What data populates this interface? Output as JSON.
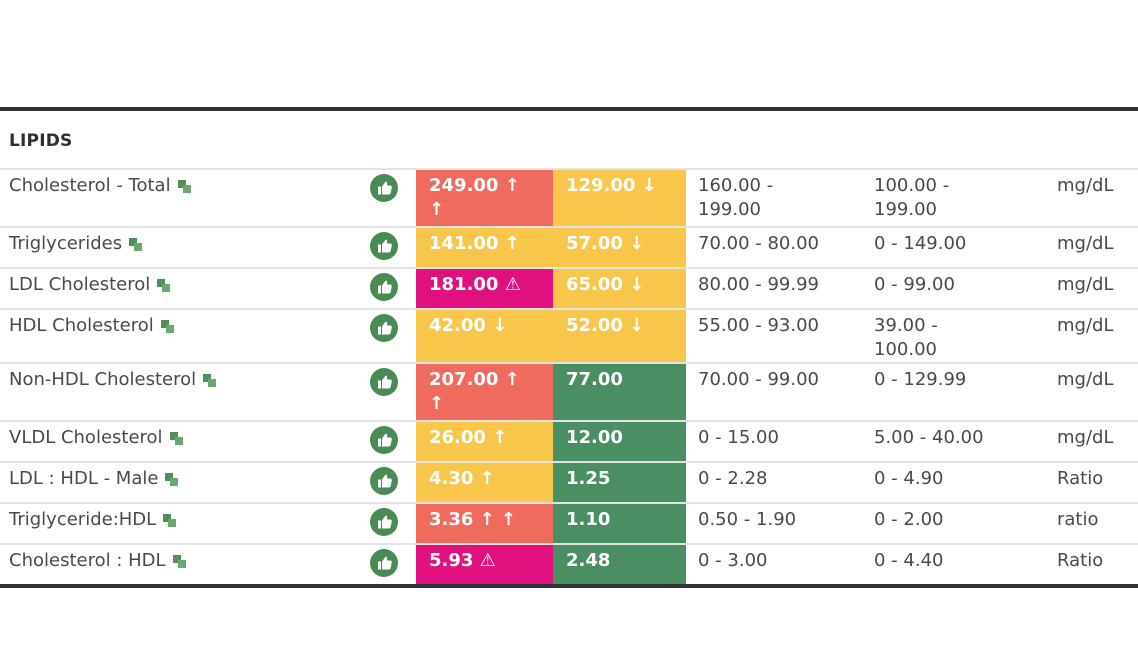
{
  "section": {
    "title": "LIPIDS"
  },
  "colors": {
    "red": "#ef6b5d",
    "yellow": "#f9c64c",
    "magenta": "#e0117e",
    "green": "#4a8f63",
    "thumb": "#4a8a55"
  },
  "rows": [
    {
      "name": "Cholesterol - Total",
      "v1": "249.00 ↑ ↑",
      "c1": "red",
      "v2": "129.00 ↓",
      "c2": "yellow",
      "ref1": "160.00 - 199.00",
      "ref2": "100.00 - 199.00",
      "unit": "mg/dL"
    },
    {
      "name": "Triglycerides",
      "v1": "141.00 ↑",
      "c1": "yellow",
      "v2": "57.00 ↓",
      "c2": "yellow",
      "ref1": "70.00 - 80.00",
      "ref2": "0 - 149.00",
      "unit": "mg/dL"
    },
    {
      "name": "LDL Cholesterol",
      "v1": "181.00 ⚠",
      "c1": "magenta",
      "v2": "65.00 ↓",
      "c2": "yellow",
      "ref1": "80.00 - 99.99",
      "ref2": "0 - 99.00",
      "unit": "mg/dL"
    },
    {
      "name": "HDL Cholesterol",
      "v1": "42.00 ↓",
      "c1": "yellow",
      "v2": "52.00 ↓",
      "c2": "yellow",
      "ref1": "55.00 - 93.00",
      "ref2": "39.00 - 100.00",
      "unit": "mg/dL"
    },
    {
      "name": "Non-HDL Cholesterol",
      "v1": "207.00 ↑ ↑",
      "c1": "red",
      "v2": "77.00",
      "c2": "green",
      "ref1": "70.00 - 99.00",
      "ref2": "0 - 129.99",
      "unit": "mg/dL"
    },
    {
      "name": "VLDL Cholesterol",
      "v1": "26.00 ↑",
      "c1": "yellow",
      "v2": "12.00",
      "c2": "green",
      "ref1": "0 - 15.00",
      "ref2": "5.00 - 40.00",
      "unit": "mg/dL"
    },
    {
      "name": "LDL : HDL - Male",
      "v1": "4.30 ↑",
      "c1": "yellow",
      "v2": "1.25",
      "c2": "green",
      "ref1": "0 - 2.28",
      "ref2": "0 - 4.90",
      "unit": "Ratio"
    },
    {
      "name": "Triglyceride:HDL",
      "v1": "3.36 ↑ ↑",
      "c1": "red",
      "v2": "1.10",
      "c2": "green",
      "ref1": "0.50 - 1.90",
      "ref2": "0 - 2.00",
      "unit": "ratio"
    },
    {
      "name": "Cholesterol : HDL",
      "v1": "5.93 ⚠",
      "c1": "magenta",
      "v2": "2.48",
      "c2": "green",
      "ref1": "0 - 3.00",
      "ref2": "0 - 4.40",
      "unit": "Ratio"
    }
  ]
}
